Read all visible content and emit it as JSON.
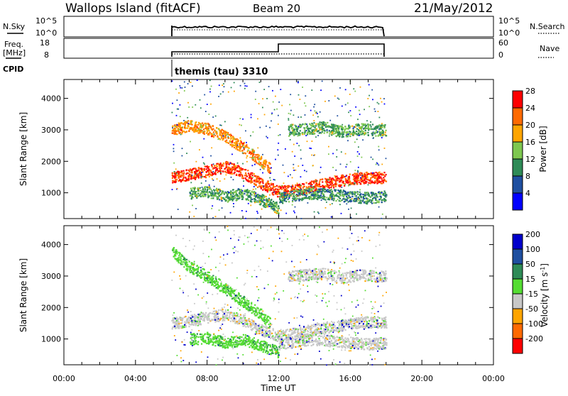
{
  "header": {
    "station": "Wallops Island (fitACF)",
    "beam": "Beam 20",
    "date": "21/May/2012"
  },
  "top_panels": {
    "nsky_label": "N.Sky",
    "nsearch_label": "N.Search",
    "freq_label_1": "Freq.",
    "freq_label_2": "[MHz]",
    "nave_label": "Nave",
    "cpid_label": "CPID",
    "cpid_text": "themis (tau) 3310",
    "noise_ticks_left": [
      "10^5",
      "10^0"
    ],
    "noise_ticks_right": [
      "10^5",
      "10^0"
    ],
    "freq_ticks_left": [
      "18",
      "8"
    ],
    "nave_ticks_right": [
      "60",
      "0"
    ]
  },
  "chart_data": [
    {
      "type": "heatmap",
      "name": "power",
      "ylabel": "Slant Range [km]",
      "ytick_labels": [
        "1000",
        "2000",
        "3000",
        "4000"
      ],
      "yticks": [
        1000,
        2000,
        3000,
        4000
      ],
      "ylim": [
        180,
        4600
      ],
      "xlim_hours": [
        0,
        24
      ],
      "colorbar_label": "Power [dB]",
      "colorbar_tick_labels": [
        "4",
        "8",
        "12",
        "16",
        "20",
        "24",
        "28"
      ],
      "colorbar_colors": [
        "#0000ff",
        "#1f4fa0",
        "#2e8b57",
        "#7ec850",
        "#ffa500",
        "#ff6a00",
        "#ff0000"
      ],
      "data_window_hours": [
        6.0,
        18.0
      ],
      "bands": [
        {
          "t": [
            6.0,
            7.0,
            8.0,
            9.0,
            10.0,
            11.0,
            12.0,
            13.0,
            14.0,
            15.0,
            16.0,
            17.0,
            18.0
          ],
          "range": [
            1500,
            1600,
            1700,
            1850,
            1650,
            1300,
            1050,
            1100,
            1250,
            1350,
            1450,
            1500,
            1500
          ],
          "level": 26
        },
        {
          "t": [
            6.0,
            7.0,
            8.0,
            9.0,
            10.0,
            11.0,
            11.5
          ],
          "range": [
            3000,
            3150,
            3050,
            2800,
            2450,
            2000,
            1800
          ],
          "level": 22
        },
        {
          "t": [
            12.5,
            13.5,
            14.5,
            15.5,
            16.5,
            17.5,
            18.0
          ],
          "range": [
            3000,
            3050,
            3100,
            2950,
            3050,
            3000,
            3000
          ],
          "level": 14
        },
        {
          "t": [
            7.0,
            8.0,
            9.0,
            10.0,
            11.0,
            12.0
          ],
          "range": [
            1000,
            1050,
            900,
            1000,
            800,
            500
          ],
          "level": 14
        },
        {
          "t": [
            12.0,
            13.0,
            14.0,
            15.0,
            16.0,
            17.0,
            18.0
          ],
          "range": [
            850,
            950,
            1000,
            950,
            900,
            850,
            900
          ],
          "level": 12
        }
      ]
    },
    {
      "type": "heatmap",
      "name": "velocity",
      "ylabel": "Slant Range [km]",
      "ytick_labels": [
        "1000",
        "2000",
        "3000",
        "4000"
      ],
      "yticks": [
        1000,
        2000,
        3000,
        4000
      ],
      "ylim": [
        180,
        4600
      ],
      "xlim_hours": [
        0,
        24
      ],
      "xtick_labels": [
        "00:00",
        "04:00",
        "08:00",
        "12:00",
        "16:00",
        "20:00",
        "00:00"
      ],
      "xticks": [
        0,
        4,
        8,
        12,
        16,
        20,
        24
      ],
      "xlabel": "Time UT",
      "colorbar_label": "Velocity [m s-1]",
      "colorbar_tick_labels": [
        "200",
        "100",
        "50",
        "15",
        "-15",
        "-50",
        "-100",
        "-200"
      ],
      "colorbar_colors": [
        "#0000cc",
        "#1f4fa0",
        "#2e8b57",
        "#55dd33",
        "#c8c8c8",
        "#ffa500",
        "#ff6a00",
        "#ff0000"
      ],
      "data_window_hours": [
        6.0,
        18.0
      ],
      "bands": [
        {
          "t": [
            6.0,
            7.0,
            8.0,
            9.0,
            10.0,
            11.0,
            12.0,
            13.0,
            14.0,
            15.0,
            16.0,
            17.0,
            18.0
          ],
          "range": [
            1500,
            1600,
            1700,
            1800,
            1600,
            1300,
            1100,
            1200,
            1350,
            1400,
            1500,
            1550,
            1550
          ],
          "level": 0
        },
        {
          "t": [
            6.0,
            7.0,
            8.0,
            9.0,
            10.0,
            11.0,
            11.5
          ],
          "range": [
            3800,
            3300,
            3000,
            2600,
            2200,
            1800,
            1500
          ],
          "level": 20
        },
        {
          "t": [
            12.5,
            13.5,
            14.5,
            15.5,
            16.5,
            17.5,
            18.0
          ],
          "range": [
            3000,
            3050,
            3100,
            2950,
            3050,
            3000,
            3000
          ],
          "level": 0
        },
        {
          "t": [
            7.0,
            8.0,
            9.0,
            10.0,
            11.0,
            12.0
          ],
          "range": [
            1000,
            1050,
            900,
            1000,
            800,
            600
          ],
          "level": 20
        },
        {
          "t": [
            12.0,
            13.0,
            14.0,
            15.0,
            16.0,
            17.0,
            18.0
          ],
          "range": [
            850,
            950,
            1000,
            950,
            900,
            850,
            900
          ],
          "level": 0
        }
      ]
    }
  ]
}
